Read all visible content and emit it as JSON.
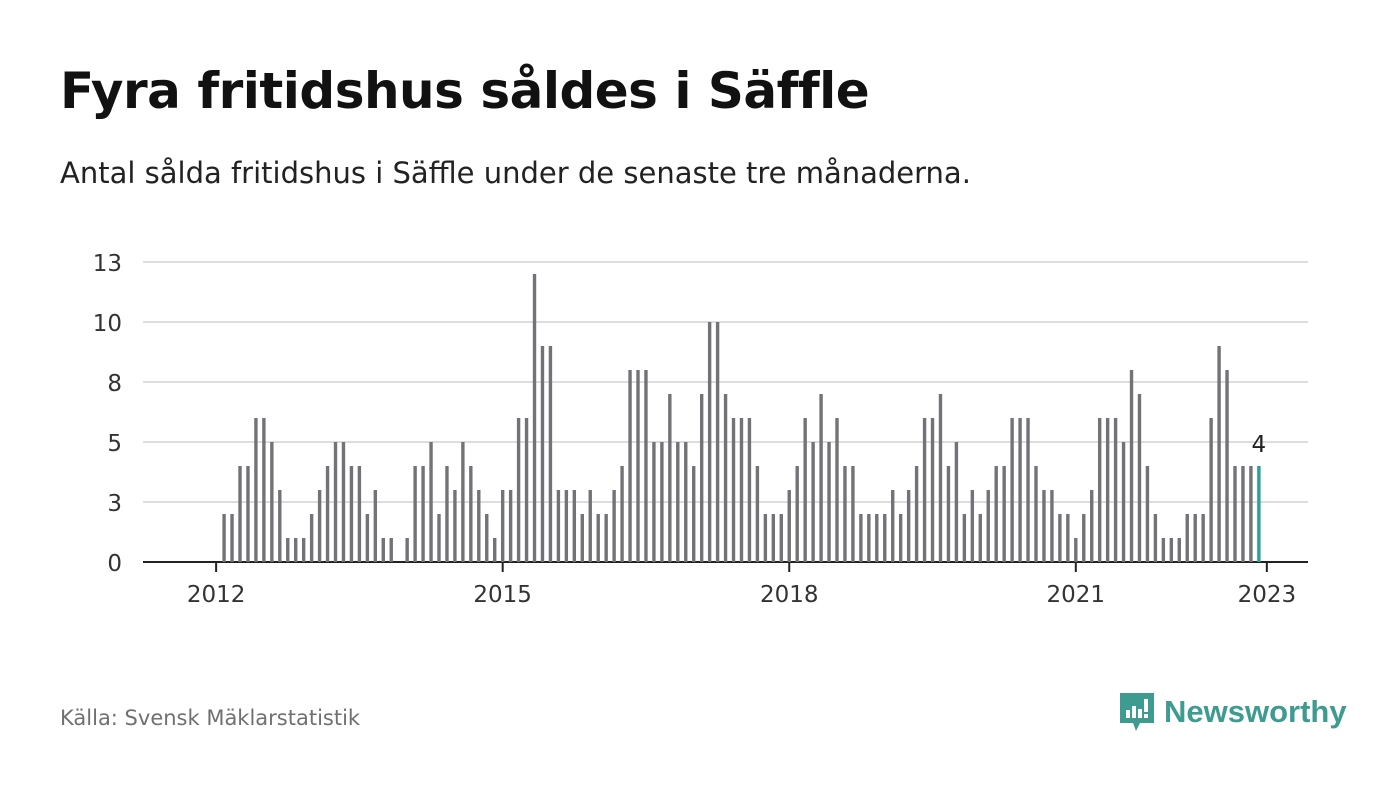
{
  "title": "Fyra fritidshus såldes i Säffle",
  "subtitle": "Antal sålda fritidshus i Säffle under de senaste tre månaderna.",
  "source": "Källa: Svensk Mäklarstatistik",
  "brand": "Newsworthy",
  "colors": {
    "bar": "#737277",
    "highlight": "#2f9e93",
    "grid": "#dddddd",
    "axis": "#222222",
    "brand": "#3d9c8f"
  },
  "chart_data": {
    "type": "bar",
    "x_start": "2011-06",
    "x_labels": [
      "2012",
      "2015",
      "2018",
      "2021",
      "2023"
    ],
    "y_ticks": [
      0,
      3,
      5,
      8,
      10,
      13
    ],
    "ylim": [
      0,
      12.5
    ],
    "grid": true,
    "highlight_last": true,
    "last_label": "4",
    "values": [
      0,
      0,
      0,
      0,
      0,
      0,
      0,
      0,
      2,
      2,
      4,
      4,
      6,
      6,
      5,
      3,
      1,
      1,
      1,
      2,
      3,
      4,
      5,
      5,
      4,
      4,
      2,
      3,
      1,
      1,
      0,
      1,
      4,
      4,
      5,
      2,
      4,
      3,
      5,
      4,
      3,
      2,
      1,
      3,
      3,
      6,
      6,
      12,
      9,
      9,
      3,
      3,
      3,
      2,
      3,
      2,
      2,
      3,
      4,
      8,
      8,
      8,
      5,
      5,
      7,
      5,
      5,
      4,
      7,
      10,
      10,
      7,
      6,
      6,
      6,
      4,
      2,
      2,
      2,
      3,
      4,
      6,
      5,
      7,
      5,
      6,
      4,
      4,
      2,
      2,
      2,
      2,
      3,
      2,
      3,
      4,
      6,
      6,
      7,
      4,
      5,
      2,
      3,
      2,
      3,
      4,
      4,
      6,
      6,
      6,
      4,
      3,
      3,
      2,
      2,
      1,
      2,
      3,
      6,
      6,
      6,
      5,
      8,
      7,
      4,
      2,
      1,
      1,
      1,
      2,
      2,
      2,
      6,
      9,
      8,
      4,
      4,
      4,
      4
    ]
  }
}
